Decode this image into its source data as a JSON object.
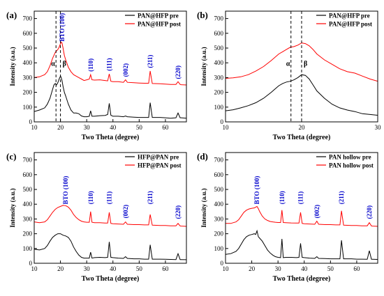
{
  "figure": {
    "xlabel": "Two Theta (degree)",
    "ylabel": "Intensity (a.u.)",
    "colors": {
      "pre": "#000000",
      "post": "#ff0000",
      "annotation": "#0000cc",
      "axis": "#000000"
    }
  },
  "chart_data": [
    {
      "type": "line",
      "panel_label": "(a)",
      "xlabel": "Two Theta (degree)",
      "ylabel": "Intensity (a.u.)",
      "xlim": [
        10,
        68
      ],
      "ylim": [
        0,
        750
      ],
      "xticks": [
        10,
        20,
        30,
        40,
        50,
        60
      ],
      "yticks": [
        0,
        100,
        200,
        300,
        400,
        500,
        600,
        700
      ],
      "grid": false,
      "legend_position": "top-right",
      "x": [
        10,
        12,
        14,
        15,
        16,
        17,
        17.5,
        18,
        18.5,
        19,
        19.5,
        20,
        20.3,
        20.6,
        21,
        21.5,
        22,
        23,
        24,
        25,
        26,
        27,
        28,
        29,
        30,
        31,
        31.5,
        32,
        33,
        35,
        37,
        38,
        38.6,
        39.2,
        40,
        42,
        44,
        44.8,
        45.5,
        48,
        50,
        52,
        53.6,
        54.2,
        55,
        58,
        60,
        62,
        64,
        64.8,
        65.6,
        66,
        68
      ],
      "series": [
        {
          "name": "PAN@HFP pre",
          "key": "pre",
          "values": [
            70,
            80,
            95,
            120,
            160,
            220,
            250,
            260,
            250,
            265,
            290,
            310,
            300,
            280,
            240,
            200,
            175,
            120,
            80,
            60,
            60,
            55,
            40,
            35,
            35,
            38,
            75,
            38,
            38,
            42,
            44,
            50,
            125,
            45,
            38,
            38,
            35,
            40,
            35,
            32,
            30,
            30,
            30,
            130,
            30,
            30,
            28,
            25,
            28,
            60,
            28,
            28,
            25
          ]
        },
        {
          "name": "PAN@HFP post",
          "key": "post",
          "values": [
            300,
            305,
            320,
            340,
            380,
            430,
            450,
            470,
            480,
            490,
            505,
            530,
            540,
            535,
            500,
            450,
            420,
            370,
            340,
            320,
            310,
            300,
            290,
            280,
            285,
            290,
            320,
            285,
            283,
            285,
            280,
            278,
            325,
            275,
            272,
            272,
            268,
            285,
            268,
            265,
            263,
            262,
            262,
            345,
            260,
            258,
            256,
            254,
            254,
            272,
            254,
            252,
            250
          ]
        }
      ],
      "annotations": [
        {
          "text": "BTO (100)",
          "x": 20.7,
          "y": 545
        },
        {
          "text": "(110)",
          "x": 31.5,
          "y": 340
        },
        {
          "text": "(111)",
          "x": 38.6,
          "y": 345
        },
        {
          "text": "(002)",
          "x": 44.8,
          "y": 305
        },
        {
          "text": "(211)",
          "x": 54.2,
          "y": 365
        },
        {
          "text": "(220)",
          "x": 64.8,
          "y": 290
        }
      ],
      "phase_marks": [
        {
          "text": "α",
          "x": 18.3
        },
        {
          "text": "β",
          "x": 20.0
        }
      ]
    },
    {
      "type": "line",
      "panel_label": "(b)",
      "xlabel": "Two Theta (degree)",
      "ylabel": "Intensity (a.u.)",
      "xlim": [
        10,
        30
      ],
      "ylim": [
        0,
        750
      ],
      "xticks": [
        10,
        20,
        30
      ],
      "yticks": [
        0,
        100,
        200,
        300,
        400,
        500,
        600,
        700
      ],
      "grid": false,
      "legend_position": "top-right",
      "x": [
        10,
        11,
        12,
        13,
        14,
        15,
        16,
        17,
        17.5,
        18,
        18.5,
        19,
        19.5,
        20,
        20.5,
        21,
        21.5,
        22,
        23,
        24,
        25,
        26,
        27,
        28,
        29,
        30
      ],
      "series": [
        {
          "name": "PAN@HFP pre",
          "key": "pre",
          "values": [
            75,
            82,
            95,
            110,
            130,
            160,
            200,
            245,
            260,
            270,
            275,
            285,
            300,
            320,
            315,
            290,
            250,
            210,
            160,
            120,
            95,
            80,
            70,
            55,
            50,
            45
          ]
        },
        {
          "name": "PAN@HFP post",
          "key": "post",
          "values": [
            295,
            298,
            305,
            320,
            345,
            375,
            415,
            460,
            475,
            490,
            505,
            510,
            520,
            535,
            530,
            515,
            490,
            460,
            420,
            390,
            360,
            340,
            330,
            310,
            290,
            275
          ]
        }
      ],
      "annotations": [],
      "phase_marks": [
        {
          "text": "α",
          "x": 18.6
        },
        {
          "text": "β",
          "x": 20.0
        }
      ]
    },
    {
      "type": "line",
      "panel_label": "(c)",
      "xlabel": "Two Theta (degree)",
      "ylabel": "Intensity (a.u.)",
      "xlim": [
        10,
        68
      ],
      "ylim": [
        0,
        750
      ],
      "xticks": [
        10,
        20,
        30,
        40,
        50,
        60
      ],
      "yticks": [
        0,
        100,
        200,
        300,
        400,
        500,
        600,
        700
      ],
      "grid": false,
      "legend_position": "top-right",
      "x": [
        10,
        12,
        14,
        15,
        16,
        17,
        18,
        19,
        20,
        21,
        22,
        23,
        24,
        25,
        26,
        27,
        28,
        29,
        30,
        31,
        31.5,
        32,
        33,
        35,
        37,
        38,
        38.6,
        39.2,
        40,
        42,
        44,
        44.8,
        45.5,
        48,
        50,
        52,
        53.6,
        54.2,
        55,
        58,
        60,
        62,
        64,
        64.8,
        65.6,
        66,
        68
      ],
      "series": [
        {
          "name": "HFP@PAN pre",
          "key": "pre",
          "values": [
            95,
            90,
            100,
            120,
            150,
            175,
            190,
            200,
            200,
            190,
            185,
            175,
            150,
            110,
            80,
            55,
            40,
            35,
            35,
            35,
            75,
            35,
            38,
            40,
            38,
            40,
            145,
            40,
            38,
            35,
            33,
            45,
            33,
            30,
            30,
            28,
            28,
            125,
            28,
            28,
            27,
            26,
            25,
            65,
            25,
            25,
            24
          ]
        },
        {
          "name": "HFP@PAN post",
          "key": "post",
          "values": [
            280,
            275,
            280,
            295,
            320,
            345,
            365,
            378,
            385,
            392,
            390,
            380,
            360,
            330,
            310,
            295,
            285,
            280,
            278,
            278,
            350,
            278,
            275,
            275,
            272,
            272,
            345,
            270,
            268,
            266,
            264,
            280,
            264,
            262,
            262,
            260,
            260,
            330,
            258,
            256,
            256,
            254,
            254,
            270,
            253,
            252,
            250
          ]
        }
      ],
      "annotations": [
        {
          "text": "BTO (100)",
          "x": 22,
          "y": 400
        },
        {
          "text": "(110)",
          "x": 31.5,
          "y": 400
        },
        {
          "text": "(111)",
          "x": 38.6,
          "y": 400
        },
        {
          "text": "(002)",
          "x": 44.8,
          "y": 305
        },
        {
          "text": "(211)",
          "x": 54.2,
          "y": 400
        },
        {
          "text": "(220)",
          "x": 64.8,
          "y": 300
        }
      ],
      "phase_marks": []
    },
    {
      "type": "line",
      "panel_label": "(d)",
      "xlabel": "Two Theta (degree)",
      "ylabel": "Intensity (a.u.)",
      "xlim": [
        10,
        68
      ],
      "ylim": [
        0,
        750
      ],
      "xticks": [
        10,
        20,
        30,
        40,
        50,
        60
      ],
      "yticks": [
        0,
        100,
        200,
        300,
        400,
        500,
        600,
        700
      ],
      "grid": false,
      "legend_position": "top-right",
      "x": [
        10,
        12,
        14,
        15,
        16,
        17,
        18,
        19,
        20,
        21,
        21.5,
        22,
        22.5,
        23,
        24,
        25,
        26,
        27,
        28,
        29,
        30,
        31,
        31.5,
        32,
        33,
        35,
        37,
        38,
        38.6,
        39.2,
        40,
        42,
        44,
        44.8,
        45.5,
        48,
        50,
        52,
        53.6,
        54.2,
        55,
        58,
        60,
        62,
        64,
        64.8,
        65.6,
        66,
        68
      ],
      "series": [
        {
          "name": "PAN hollow pre",
          "key": "pre",
          "values": [
            60,
            65,
            80,
            100,
            130,
            160,
            180,
            190,
            195,
            200,
            195,
            220,
            180,
            170,
            150,
            120,
            90,
            70,
            55,
            45,
            40,
            38,
            165,
            38,
            40,
            40,
            38,
            40,
            135,
            40,
            38,
            35,
            33,
            45,
            33,
            32,
            30,
            30,
            30,
            155,
            30,
            30,
            28,
            28,
            27,
            85,
            27,
            27,
            26
          ]
        },
        {
          "name": "PAN hollow post",
          "key": "post",
          "values": [
            270,
            270,
            280,
            295,
            320,
            345,
            360,
            368,
            372,
            375,
            380,
            385,
            370,
            350,
            320,
            300,
            290,
            283,
            280,
            278,
            276,
            276,
            360,
            276,
            275,
            273,
            272,
            272,
            345,
            270,
            268,
            266,
            264,
            285,
            264,
            262,
            262,
            260,
            260,
            355,
            258,
            256,
            256,
            254,
            254,
            275,
            253,
            252,
            250
          ]
        }
      ],
      "annotations": [
        {
          "text": "BTO (100)",
          "x": 22,
          "y": 400
        },
        {
          "text": "(110)",
          "x": 31.5,
          "y": 400
        },
        {
          "text": "(111)",
          "x": 38.6,
          "y": 400
        },
        {
          "text": "(002)",
          "x": 44.8,
          "y": 305
        },
        {
          "text": "(211)",
          "x": 54.2,
          "y": 400
        },
        {
          "text": "(220)",
          "x": 64.8,
          "y": 300
        }
      ],
      "phase_marks": []
    }
  ]
}
